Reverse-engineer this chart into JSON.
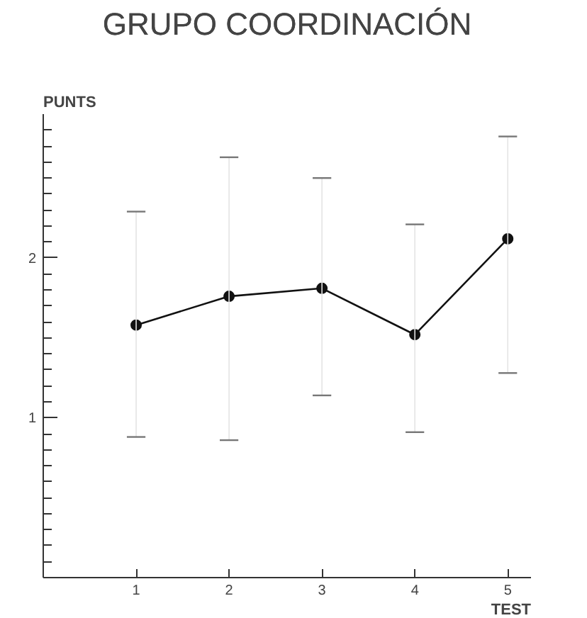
{
  "chart_data": {
    "type": "line",
    "title": "GRUPO COORDINACIÓN",
    "ylabel": "PUNTS",
    "xlabel": "TEST",
    "x": [
      1,
      2,
      3,
      4,
      5
    ],
    "values": [
      1.58,
      1.76,
      1.81,
      1.52,
      2.12
    ],
    "errors": [
      [
        0.88,
        2.29
      ],
      [
        0.86,
        2.63
      ],
      [
        1.14,
        2.5
      ],
      [
        0.91,
        2.21
      ],
      [
        1.28,
        2.76
      ]
    ],
    "color": "#111111",
    "marker": "circle",
    "line_style": "solid",
    "grid": false,
    "xlim": [
      0,
      5.25
    ],
    "ylim": [
      0,
      2.9
    ],
    "xticks": [
      1,
      2,
      3,
      4,
      5
    ],
    "yticks": [
      {
        "value": 0.1,
        "label": null
      },
      {
        "value": 0.2,
        "label": null
      },
      {
        "value": 0.3,
        "label": null
      },
      {
        "value": 0.4,
        "label": null
      },
      {
        "value": 0.5,
        "label": null
      },
      {
        "value": 0.6,
        "label": null
      },
      {
        "value": 0.7,
        "label": null
      },
      {
        "value": 0.8,
        "label": null
      },
      {
        "value": 0.9,
        "label": null
      },
      1,
      {
        "value": 1.1,
        "label": null
      },
      {
        "value": 1.2,
        "label": null
      },
      {
        "value": 1.3,
        "label": null
      },
      {
        "value": 1.4,
        "label": null
      },
      {
        "value": 1.5,
        "label": null
      },
      {
        "value": 1.6,
        "label": null
      },
      {
        "value": 1.7,
        "label": null
      },
      {
        "value": 1.8,
        "label": null
      },
      {
        "value": 1.9,
        "label": null
      },
      2,
      {
        "value": 2.1,
        "label": null
      },
      {
        "value": 2.2,
        "label": null
      },
      {
        "value": 2.3,
        "label": null
      },
      {
        "value": 2.4,
        "label": null
      },
      {
        "value": 2.5,
        "label": null
      },
      {
        "value": 2.6,
        "label": null
      },
      {
        "value": 2.7,
        "label": null
      },
      {
        "value": 2.8,
        "label": null
      }
    ]
  }
}
